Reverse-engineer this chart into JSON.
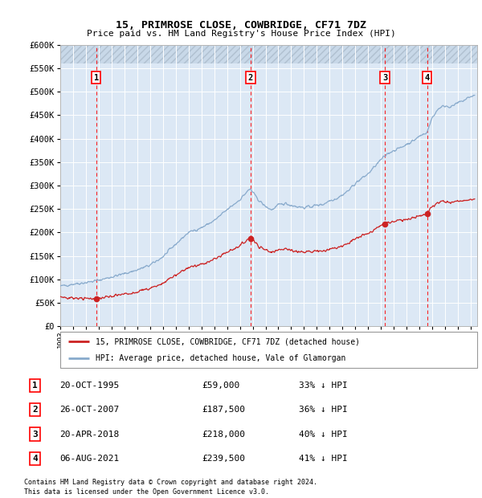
{
  "title1": "15, PRIMROSE CLOSE, COWBRIDGE, CF71 7DZ",
  "title2": "Price paid vs. HM Land Registry's House Price Index (HPI)",
  "legend_line1": "15, PRIMROSE CLOSE, COWBRIDGE, CF71 7DZ (detached house)",
  "legend_line2": "HPI: Average price, detached house, Vale of Glamorgan",
  "footer1": "Contains HM Land Registry data © Crown copyright and database right 2024.",
  "footer2": "This data is licensed under the Open Government Licence v3.0.",
  "sales": [
    {
      "num": 1,
      "date": "20-OCT-1995",
      "x": 1995.8,
      "price": 59000,
      "pct": "33% ↓ HPI"
    },
    {
      "num": 2,
      "date": "26-OCT-2007",
      "x": 2007.83,
      "price": 187500,
      "pct": "36% ↓ HPI"
    },
    {
      "num": 3,
      "date": "20-APR-2018",
      "x": 2018.3,
      "price": 218000,
      "pct": "40% ↓ HPI"
    },
    {
      "num": 4,
      "date": "06-AUG-2021",
      "x": 2021.6,
      "price": 239500,
      "pct": "41% ↓ HPI"
    }
  ],
  "sale_color": "#cc2222",
  "hpi_color": "#88aacc",
  "ylim": [
    0,
    600000
  ],
  "xlim": [
    1993.0,
    2025.5
  ],
  "yticks": [
    0,
    50000,
    100000,
    150000,
    200000,
    250000,
    300000,
    350000,
    400000,
    450000,
    500000,
    550000,
    600000
  ],
  "hatch_threshold": 560000,
  "bg_color": "#dce8f5",
  "grid_color": "#ffffff",
  "table_data": [
    [
      "1",
      "20-OCT-1995",
      "£59,000",
      "33% ↓ HPI"
    ],
    [
      "2",
      "26-OCT-2007",
      "£187,500",
      "36% ↓ HPI"
    ],
    [
      "3",
      "20-APR-2018",
      "£218,000",
      "40% ↓ HPI"
    ],
    [
      "4",
      "06-AUG-2021",
      "£239,500",
      "41% ↓ HPI"
    ]
  ]
}
